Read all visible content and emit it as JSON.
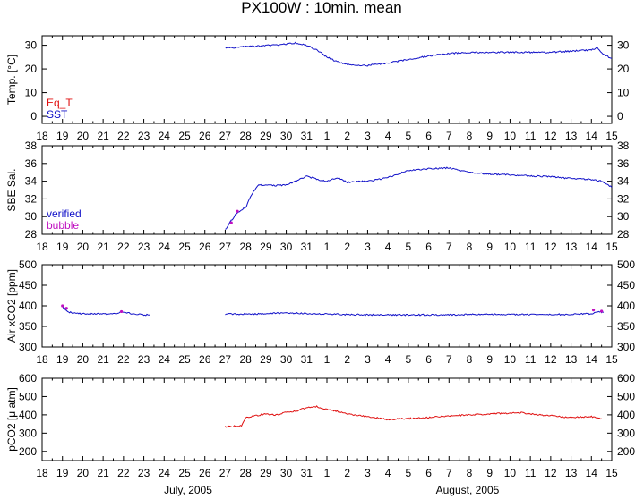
{
  "title": "PX100W : 10min. mean",
  "x_axis": {
    "ticks": [
      "18",
      "19",
      "20",
      "21",
      "22",
      "23",
      "24",
      "25",
      "26",
      "27",
      "28",
      "29",
      "30",
      "31",
      "1",
      "2",
      "3",
      "4",
      "5",
      "6",
      "7",
      "8",
      "9",
      "10",
      "11",
      "12",
      "13",
      "14",
      "15"
    ],
    "month_labels": [
      {
        "text": "July, 2005",
        "at": 23.5
      },
      {
        "text": "August, 2005",
        "at": 20.5
      }
    ],
    "range_days_from_jul18": [
      0,
      28
    ]
  },
  "colors": {
    "sst": "#1010c8",
    "eq_t": "#e01010",
    "verified": "#1010c8",
    "bubble": "#c010c0",
    "pco2": "#e01010"
  },
  "chart_data": [
    {
      "type": "line",
      "ylabel": "Temp. [°C]",
      "ylim": [
        -3,
        34
      ],
      "yticks": [
        0,
        10,
        20,
        30
      ],
      "legend": [
        {
          "name": "Eq_T",
          "color": "#e01010"
        },
        {
          "name": "SST",
          "color": "#1010c8"
        }
      ],
      "series": [
        {
          "name": "SST",
          "color": "#1010c8",
          "x": [
            "Jul 27",
            "Jul 27.5",
            "Jul 28",
            "Jul 28.5",
            "Jul 29",
            "Jul 29.5",
            "Jul 30",
            "Jul 30.5",
            "Jul 31",
            "Jul 31.5",
            "Aug 1",
            "Aug 1.5",
            "Aug 2",
            "Aug 2.5",
            "Aug 3",
            "Aug 4",
            "Aug 5",
            "Aug 6",
            "Aug 7",
            "Aug 8",
            "Aug 9",
            "Aug 10",
            "Aug 11",
            "Aug 12",
            "Aug 13",
            "Aug 14",
            "Aug 14.3",
            "Aug 14.6",
            "Aug 15"
          ],
          "y": [
            29,
            29,
            29.5,
            29.5,
            30,
            30,
            30.5,
            31,
            30,
            28,
            25,
            23,
            22,
            21.5,
            21.5,
            22.5,
            24,
            25.5,
            26.5,
            27,
            27,
            27,
            27,
            27,
            27.5,
            28,
            29,
            26,
            24.5
          ]
        }
      ]
    },
    {
      "type": "line",
      "ylabel": "SBE Sal.",
      "ylim": [
        28,
        38
      ],
      "yticks": [
        28,
        30,
        32,
        34,
        36,
        38
      ],
      "legend": [
        {
          "name": "verified",
          "color": "#1010c8"
        },
        {
          "name": "bubble",
          "color": "#c010c0"
        }
      ],
      "series": [
        {
          "name": "verified",
          "color": "#1010c8",
          "x": [
            "Jul 27",
            "Jul 27.2",
            "Jul 27.5",
            "Jul 27.8",
            "Jul 28",
            "Jul 28.3",
            "Jul 28.6",
            "Jul 29",
            "Jul 29.5",
            "Jul 30",
            "Jul 30.5",
            "Jul 31",
            "Jul 31.5",
            "Aug 1",
            "Aug 1.5",
            "Aug 2",
            "Aug 3",
            "Aug 4",
            "Aug 5",
            "Aug 6",
            "Aug 7",
            "Aug 8",
            "Aug 9",
            "Aug 10",
            "Aug 11",
            "Aug 12",
            "Aug 13",
            "Aug 14",
            "Aug 14.5",
            "Aug 15"
          ],
          "y": [
            28.5,
            29.2,
            30.2,
            30.8,
            31,
            32.5,
            33.5,
            33.6,
            33.5,
            33.6,
            34,
            34.6,
            34.2,
            34,
            34.4,
            33.9,
            34,
            34.4,
            35.2,
            35.4,
            35.5,
            35,
            34.8,
            34.7,
            34.6,
            34.5,
            34.3,
            34.2,
            34,
            33.3
          ]
        },
        {
          "name": "bubble",
          "color": "#c010c0",
          "x": [
            "Jul 27.3",
            "Jul 27.6"
          ],
          "y": [
            29.3,
            30.6
          ]
        }
      ]
    },
    {
      "type": "line",
      "ylabel": "Air xCO2 [ppm]",
      "ylim": [
        300,
        500
      ],
      "yticks": [
        300,
        350,
        400,
        450,
        500
      ],
      "series": [
        {
          "name": "segment-1",
          "color": "#1010c8",
          "x": [
            "Jul 19",
            "Jul 19.3",
            "Jul 19.6",
            "Jul 20",
            "Jul 21",
            "Jul 21.5",
            "Jul 22",
            "Jul 22.5",
            "Jul 23",
            "Jul 23.3"
          ],
          "y": [
            398,
            385,
            382,
            381,
            380,
            381,
            385,
            380,
            378,
            378
          ]
        },
        {
          "name": "segment-2",
          "color": "#1010c8",
          "x": [
            "Jul 27",
            "Jul 28",
            "Jul 29",
            "Jul 30",
            "Jul 31",
            "Aug 1",
            "Aug 2",
            "Aug 3",
            "Aug 4",
            "Aug 5",
            "Aug 6",
            "Aug 7",
            "Aug 8",
            "Aug 9",
            "Aug 10",
            "Aug 11",
            "Aug 12",
            "Aug 13",
            "Aug 14",
            "Aug 14.3",
            "Aug 14.6"
          ],
          "y": [
            380,
            380,
            381,
            383,
            381,
            380,
            379,
            378,
            378,
            378,
            378,
            378,
            379,
            379,
            379,
            379,
            379,
            379,
            381,
            386,
            384
          ]
        },
        {
          "name": "bubble",
          "color": "#c010c0",
          "x": [
            "Jul 19",
            "Jul 19.2",
            "Jul 21.9",
            "Aug 14.1",
            "Aug 14.5"
          ],
          "y": [
            400,
            394,
            386,
            390,
            387
          ]
        }
      ]
    },
    {
      "type": "line",
      "ylabel": "pCO2 [μ atm]",
      "ylim": [
        150,
        600
      ],
      "yticks": [
        200,
        300,
        400,
        500,
        600
      ],
      "series": [
        {
          "name": "pCO2",
          "color": "#e01010",
          "x": [
            "Jul 27",
            "Jul 27.5",
            "Jul 27.8",
            "Jul 28",
            "Jul 28.5",
            "Jul 29",
            "Jul 29.5",
            "Jul 30",
            "Jul 30.5",
            "Jul 31",
            "Jul 31.5",
            "Aug 1",
            "Aug 1.5",
            "Aug 2",
            "Aug 3",
            "Aug 4",
            "Aug 5",
            "Aug 6",
            "Aug 7",
            "Aug 8",
            "Aug 9",
            "Aug 10",
            "Aug 10.5",
            "Aug 11",
            "Aug 12",
            "Aug 13",
            "Aug 14",
            "Aug 14.5"
          ],
          "y": [
            335,
            338,
            340,
            385,
            395,
            405,
            398,
            415,
            420,
            440,
            445,
            430,
            420,
            405,
            390,
            375,
            380,
            385,
            395,
            400,
            405,
            410,
            412,
            405,
            395,
            385,
            390,
            380
          ]
        }
      ]
    }
  ]
}
